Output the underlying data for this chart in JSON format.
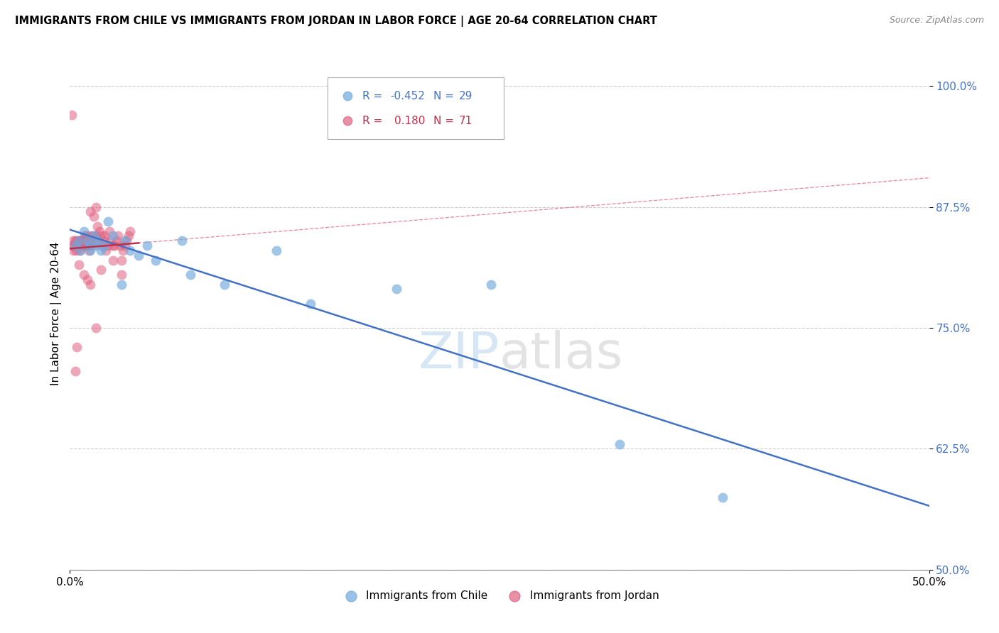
{
  "title": "IMMIGRANTS FROM CHILE VS IMMIGRANTS FROM JORDAN IN LABOR FORCE | AGE 20-64 CORRELATION CHART",
  "source": "Source: ZipAtlas.com",
  "ylabel": "In Labor Force | Age 20-64",
  "yticks": [
    50.0,
    62.5,
    75.0,
    87.5,
    100.0
  ],
  "ytick_labels": [
    "50.0%",
    "62.5%",
    "75.0%",
    "87.5%",
    "100.0%"
  ],
  "xlim": [
    0.0,
    50.0
  ],
  "ylim": [
    50.0,
    103.0
  ],
  "legend_chile_r": "-0.452",
  "legend_chile_n": "29",
  "legend_jordan_r": "0.180",
  "legend_jordan_n": "71",
  "chile_color": "#6fa8dc",
  "jordan_color": "#e06080",
  "chile_line_color": "#4472c4",
  "jordan_line_color": "#c0304a",
  "jordan_dashed_color": "#e06080",
  "watermark_zip": "ZIP",
  "watermark_atlas": "atlas",
  "chile_points_x": [
    0.3,
    0.5,
    0.6,
    0.8,
    1.0,
    1.1,
    1.2,
    1.4,
    1.5,
    1.6,
    1.8,
    2.0,
    2.2,
    2.5,
    3.0,
    3.2,
    3.5,
    4.0,
    4.5,
    5.0,
    6.5,
    7.0,
    9.0,
    12.0,
    14.0,
    19.0,
    24.5,
    32.0,
    38.0
  ],
  "chile_points_y": [
    83.5,
    84.0,
    83.0,
    85.0,
    84.0,
    83.5,
    83.0,
    84.5,
    83.5,
    84.0,
    83.0,
    83.5,
    86.0,
    84.5,
    79.5,
    84.0,
    83.0,
    82.5,
    83.5,
    82.0,
    84.0,
    80.5,
    79.5,
    83.0,
    77.5,
    79.0,
    79.5,
    63.0,
    57.5
  ],
  "jordan_points_x": [
    0.1,
    0.15,
    0.2,
    0.2,
    0.25,
    0.3,
    0.3,
    0.35,
    0.4,
    0.4,
    0.45,
    0.5,
    0.5,
    0.55,
    0.6,
    0.6,
    0.65,
    0.7,
    0.7,
    0.75,
    0.8,
    0.8,
    0.85,
    0.9,
    0.9,
    0.95,
    1.0,
    1.0,
    1.05,
    1.1,
    1.1,
    1.2,
    1.2,
    1.3,
    1.3,
    1.4,
    1.4,
    1.5,
    1.5,
    1.6,
    1.6,
    1.7,
    1.8,
    1.9,
    2.0,
    2.1,
    2.2,
    2.3,
    2.4,
    2.5,
    2.6,
    2.7,
    2.8,
    2.9,
    3.0,
    3.1,
    3.2,
    3.3,
    3.4,
    3.5,
    0.5,
    0.8,
    1.0,
    1.2,
    1.5,
    1.8,
    2.0,
    2.5,
    3.0,
    0.3,
    0.4
  ],
  "jordan_points_y": [
    97.0,
    83.5,
    84.0,
    83.0,
    83.5,
    84.0,
    83.5,
    83.0,
    83.5,
    84.0,
    83.5,
    84.0,
    83.5,
    83.0,
    84.0,
    83.5,
    84.0,
    83.5,
    84.0,
    83.5,
    84.0,
    83.5,
    84.5,
    83.5,
    84.0,
    84.5,
    83.5,
    84.0,
    83.5,
    84.5,
    83.0,
    87.0,
    84.0,
    84.5,
    83.5,
    86.5,
    84.0,
    87.5,
    84.5,
    85.5,
    84.0,
    85.0,
    84.5,
    83.5,
    84.5,
    83.0,
    83.5,
    85.0,
    84.0,
    83.5,
    83.5,
    84.0,
    84.5,
    83.5,
    82.0,
    83.0,
    83.5,
    84.0,
    84.5,
    85.0,
    81.5,
    80.5,
    80.0,
    79.5,
    75.0,
    81.0,
    84.0,
    82.0,
    80.5,
    70.5,
    73.0
  ]
}
